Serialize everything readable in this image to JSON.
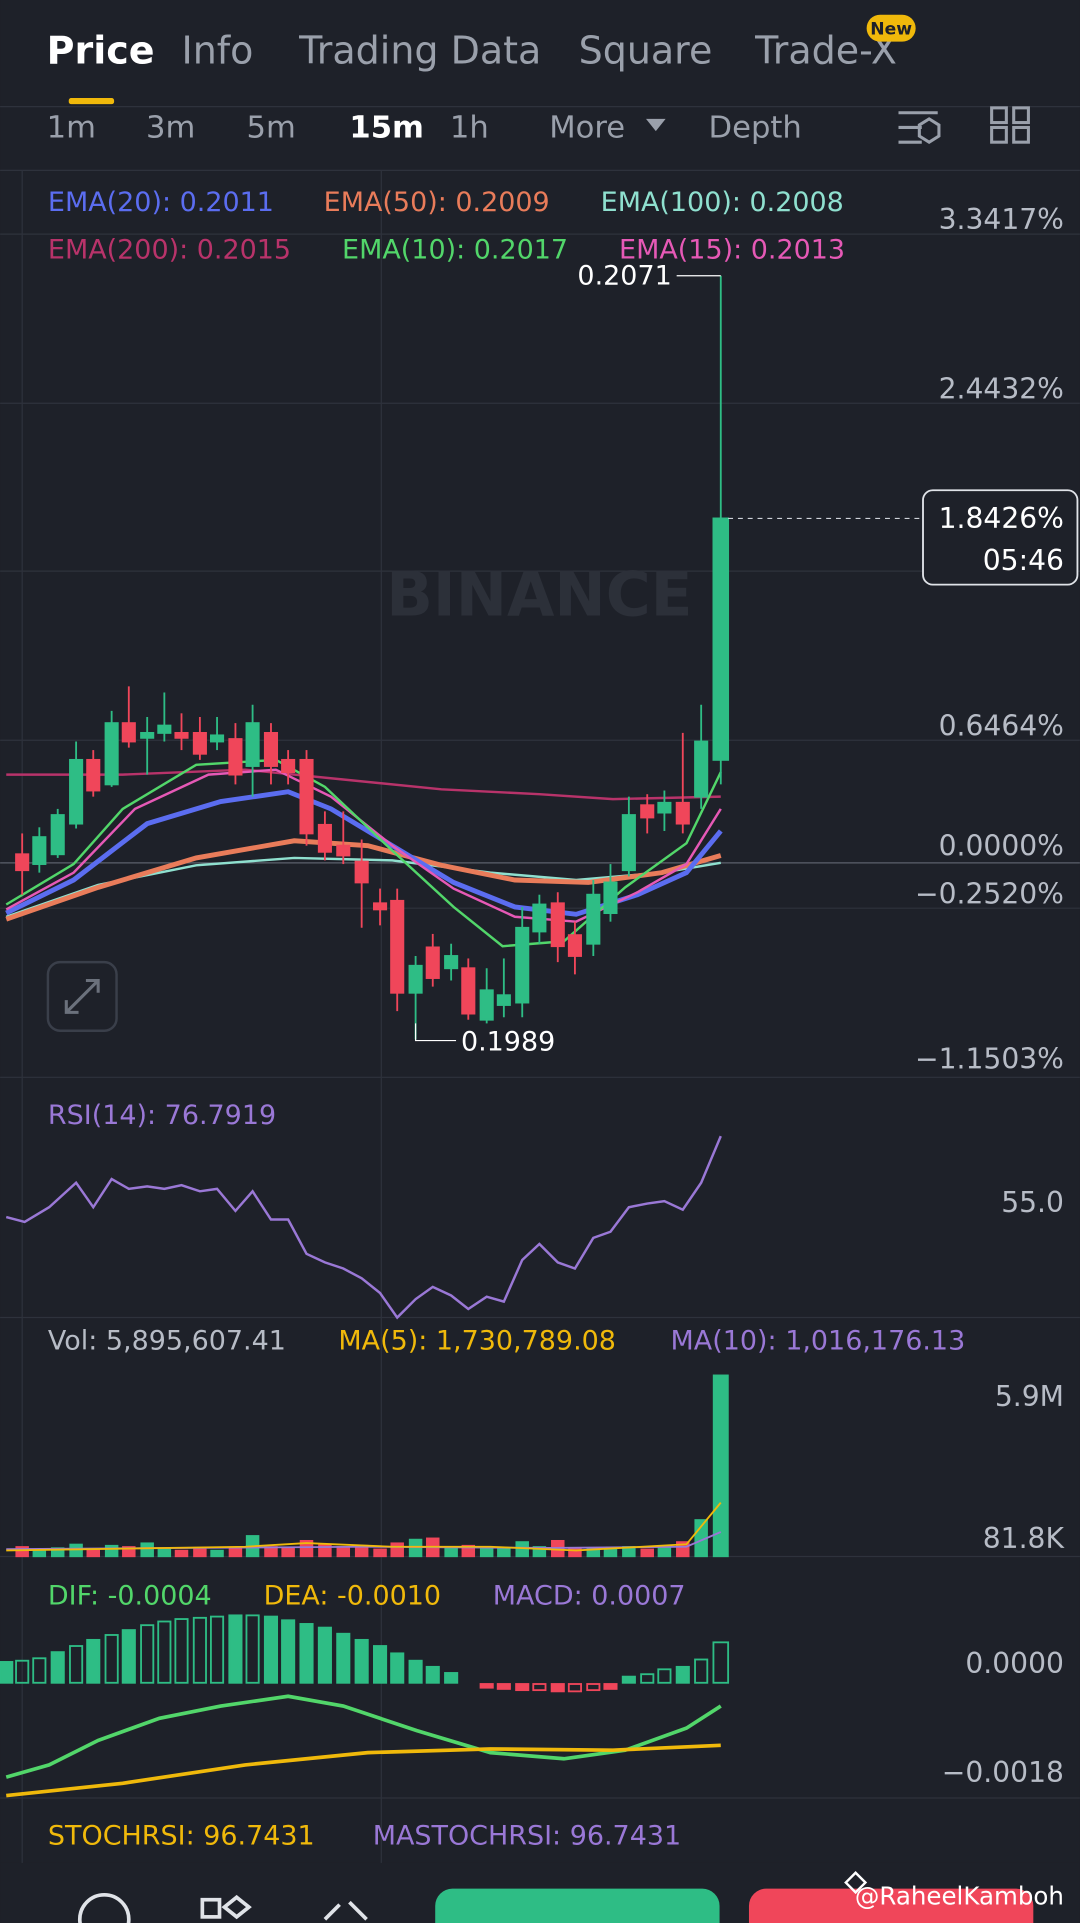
{
  "tabs": [
    "Price",
    "Info",
    "Trading Data",
    "Square",
    "Trade-X"
  ],
  "tab_badge": "New",
  "intervals": [
    "1m",
    "3m",
    "5m",
    "15m",
    "1h",
    "More",
    "Depth"
  ],
  "ema_legend": [
    "EMA(20): 0.2011",
    "EMA(50): 0.2009",
    "EMA(100): 0.2008",
    "EMA(200): 0.2015",
    "EMA(10): 0.2017",
    "EMA(15): 0.2013"
  ],
  "price_axis": [
    "3.3417%",
    "2.4432%",
    "0.6464%",
    "0.0000%",
    "−0.2520%",
    "−1.1503%"
  ],
  "high_label": "0.2071",
  "low_label": "0.1989",
  "current": {
    "change": "1.8426%",
    "countdown": "05:46"
  },
  "watermark": "BINANCE",
  "rsi": {
    "label": "RSI(14): 76.7919",
    "axis": "55.0"
  },
  "volume": {
    "labels": [
      "Vol: 5,895,607.41",
      "MA(5): 1,730,789.08",
      "MA(10): 1,016,176.13"
    ],
    "axis": [
      "5.9M",
      "81.8K"
    ]
  },
  "macd": {
    "labels": [
      "DIF: -0.0004",
      "DEA: -0.0010",
      "MACD: 0.0007"
    ],
    "axis": [
      "0.0000",
      "−0.0018"
    ]
  },
  "stochrsi": {
    "labels": [
      "STOCHRSI: 96.7431",
      "MASTOCHRSI: 96.7431"
    ]
  },
  "credit": "@RaheelKamboh"
}
